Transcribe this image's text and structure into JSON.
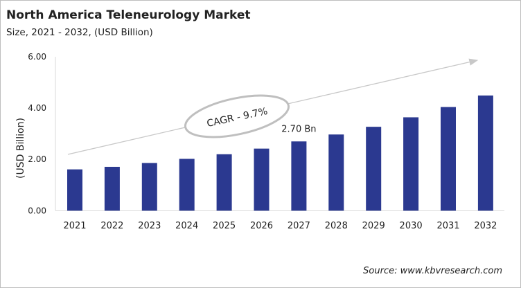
{
  "chart_data": {
    "type": "bar",
    "title": "North America Teleneurology Market",
    "subtitle": "Size, 2021 - 2032, (USD Billion)",
    "xlabel": "",
    "ylabel": "(USD Billion)",
    "ylim": [
      0,
      6
    ],
    "yticks": [
      "0.00",
      "2.00",
      "4.00",
      "6.00"
    ],
    "categories": [
      "2021",
      "2022",
      "2023",
      "2024",
      "2025",
      "2026",
      "2027",
      "2028",
      "2029",
      "2030",
      "2031",
      "2032"
    ],
    "values": [
      1.61,
      1.71,
      1.86,
      2.02,
      2.2,
      2.42,
      2.7,
      2.97,
      3.27,
      3.64,
      4.04,
      4.49
    ],
    "data_label": {
      "category": "2027",
      "text": "2.70 Bn"
    },
    "annotation": "CAGR - 9.7%",
    "grid": false,
    "legend": "none",
    "bar_color": "#2b3990",
    "source": "Source: www.kbvresearch.com"
  }
}
